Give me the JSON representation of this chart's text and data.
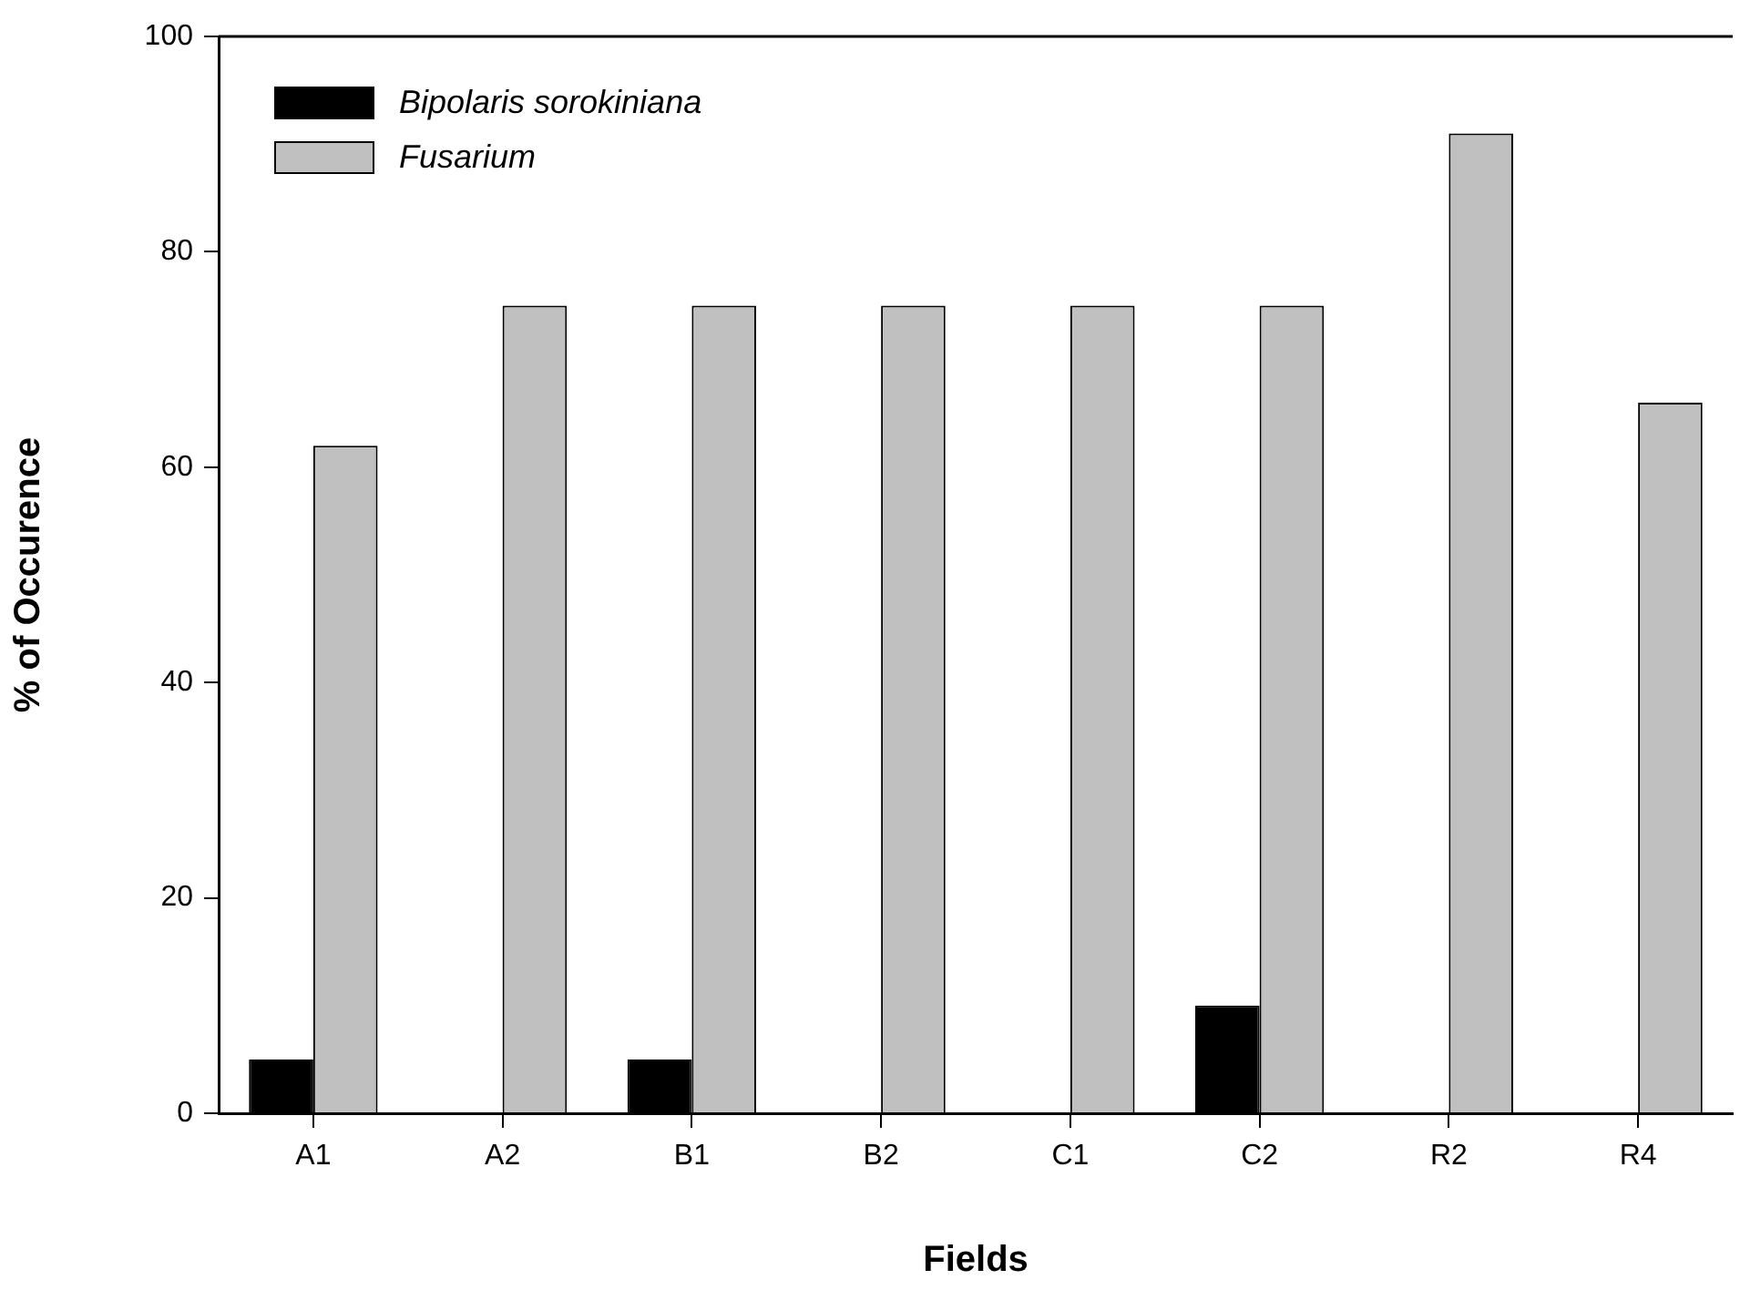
{
  "chart_data": {
    "type": "bar",
    "xlabel": "Fields",
    "ylabel": "% of Occurence",
    "categories": [
      "A1",
      "A2",
      "B1",
      "B2",
      "C1",
      "C2",
      "R2",
      "R4"
    ],
    "series": [
      {
        "name": "Bipolaris sorokiniana",
        "color": "#000000",
        "values": [
          5,
          0,
          5,
          0,
          0,
          10,
          0,
          0
        ]
      },
      {
        "name": "Fusarium",
        "color": "#c0c0c0",
        "values": [
          62,
          75,
          75,
          75,
          75,
          75,
          91,
          66
        ]
      }
    ],
    "ylim": [
      0,
      100
    ],
    "yticks": [
      0,
      20,
      40,
      60,
      80,
      100
    ],
    "grid": false,
    "legend": "top left"
  }
}
